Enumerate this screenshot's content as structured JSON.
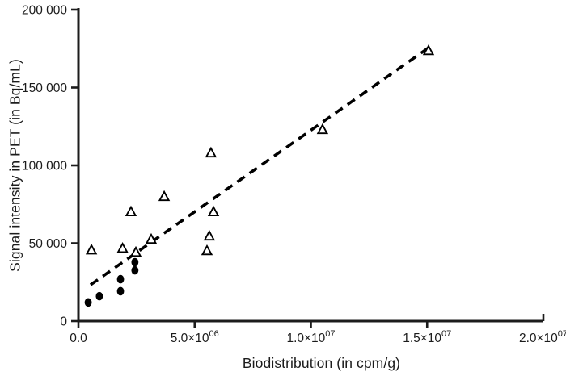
{
  "figure": {
    "background": "#ffffff",
    "ink_color": "#1c1c1c",
    "marker_color": "#000000"
  },
  "chart_data": {
    "type": "scatter",
    "title": "",
    "xlabel": "Biodistribution (in cpm/g)",
    "ylabel": "Signal intensity in PET (in Bq/mL)",
    "xlim": [
      0,
      20000000
    ],
    "ylim": [
      0,
      200000
    ],
    "grid": false,
    "legend": "none",
    "x_ticks": [
      {
        "value": 0,
        "base": "0.0",
        "sup": ""
      },
      {
        "value": 5000000,
        "base": "5.0×10",
        "sup": "06"
      },
      {
        "value": 10000000,
        "base": "1.0×10",
        "sup": "07"
      },
      {
        "value": 15000000,
        "base": "1.5×10",
        "sup": "07"
      },
      {
        "value": 20000000,
        "base": "2.0×10",
        "sup": "07"
      }
    ],
    "y_ticks": [
      {
        "value": 0,
        "label": "0"
      },
      {
        "value": 50000,
        "label": "50 000"
      },
      {
        "value": 100000,
        "label": "100 000"
      },
      {
        "value": 150000,
        "label": "150 000"
      },
      {
        "value": 200000,
        "label": "200 000"
      }
    ],
    "series": [
      {
        "name": "open-triangles",
        "marker": "triangle-open",
        "points": [
          [
            560000,
            45500
          ],
          [
            1900000,
            46500
          ],
          [
            2260000,
            70000
          ],
          [
            2470000,
            44000
          ],
          [
            3130000,
            52300
          ],
          [
            3690000,
            79800
          ],
          [
            5530000,
            45000
          ],
          [
            5630000,
            54400
          ],
          [
            5700000,
            107800
          ],
          [
            5810000,
            70000
          ],
          [
            10500000,
            122800
          ],
          [
            15060000,
            173500
          ]
        ]
      },
      {
        "name": "filled-circles",
        "marker": "circle-filled",
        "points": [
          [
            420000,
            12000
          ],
          [
            900000,
            16000
          ],
          [
            1810000,
            19200
          ],
          [
            1810000,
            26900
          ],
          [
            2430000,
            32600
          ],
          [
            2430000,
            37800
          ]
        ]
      }
    ],
    "trendline": {
      "style": "dashed",
      "x1": 520000,
      "y1": 23300,
      "x2": 15170000,
      "y2": 176700
    }
  }
}
